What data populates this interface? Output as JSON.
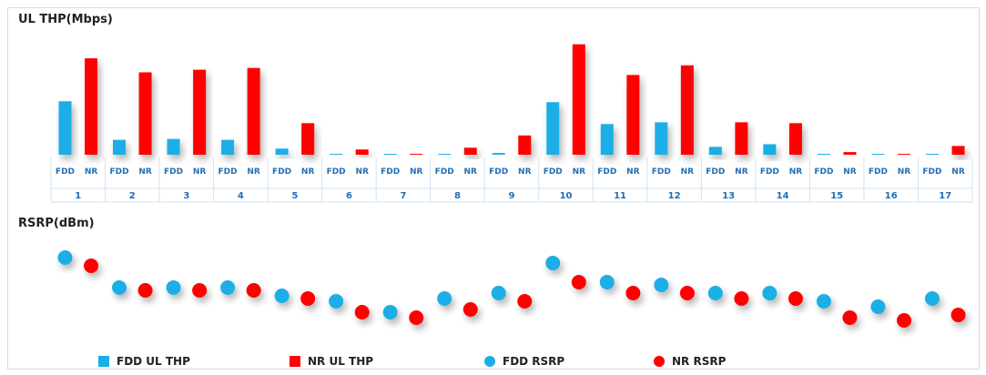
{
  "chart_data": [
    {
      "type": "bar",
      "title": "UL THP(Mbps)",
      "categories": [
        "1",
        "2",
        "3",
        "4",
        "5",
        "6",
        "7",
        "8",
        "9",
        "10",
        "11",
        "12",
        "13",
        "14",
        "15",
        "16",
        "17"
      ],
      "sub_labels": [
        "FDD",
        "NR"
      ],
      "series": [
        {
          "name": "FDD UL THP",
          "color": "#1aaee6",
          "values": [
            61,
            17,
            18,
            17,
            7,
            1,
            1,
            1,
            2,
            60,
            35,
            37,
            9,
            12,
            1,
            1,
            1
          ]
        },
        {
          "name": "NR UL THP",
          "color": "#ff0000",
          "values": [
            110,
            94,
            97,
            99,
            36,
            6,
            1,
            8,
            22,
            126,
            91,
            102,
            37,
            36,
            3,
            1,
            10
          ]
        }
      ],
      "ylim": [
        0,
        135
      ]
    },
    {
      "type": "scatter",
      "title": "RSRP(dBm)",
      "categories": [
        "1",
        "2",
        "3",
        "4",
        "5",
        "6",
        "7",
        "8",
        "9",
        "10",
        "11",
        "12",
        "13",
        "14",
        "15",
        "16",
        "17"
      ],
      "series": [
        {
          "name": "FDD RSRP",
          "color": "#1aaee6",
          "values": [
            -80,
            -91,
            -91,
            -91,
            -94,
            -96,
            -100,
            -95,
            -93,
            -82,
            -89,
            -90,
            -93,
            -93,
            -96,
            -98,
            -95
          ]
        },
        {
          "name": "NR RSRP",
          "color": "#ff0000",
          "values": [
            -83,
            -92,
            -92,
            -92,
            -95,
            -100,
            -102,
            -99,
            -96,
            -89,
            -93,
            -93,
            -95,
            -95,
            -102,
            -103,
            -101
          ]
        }
      ],
      "ylim": [
        -110,
        -75
      ]
    }
  ]
}
